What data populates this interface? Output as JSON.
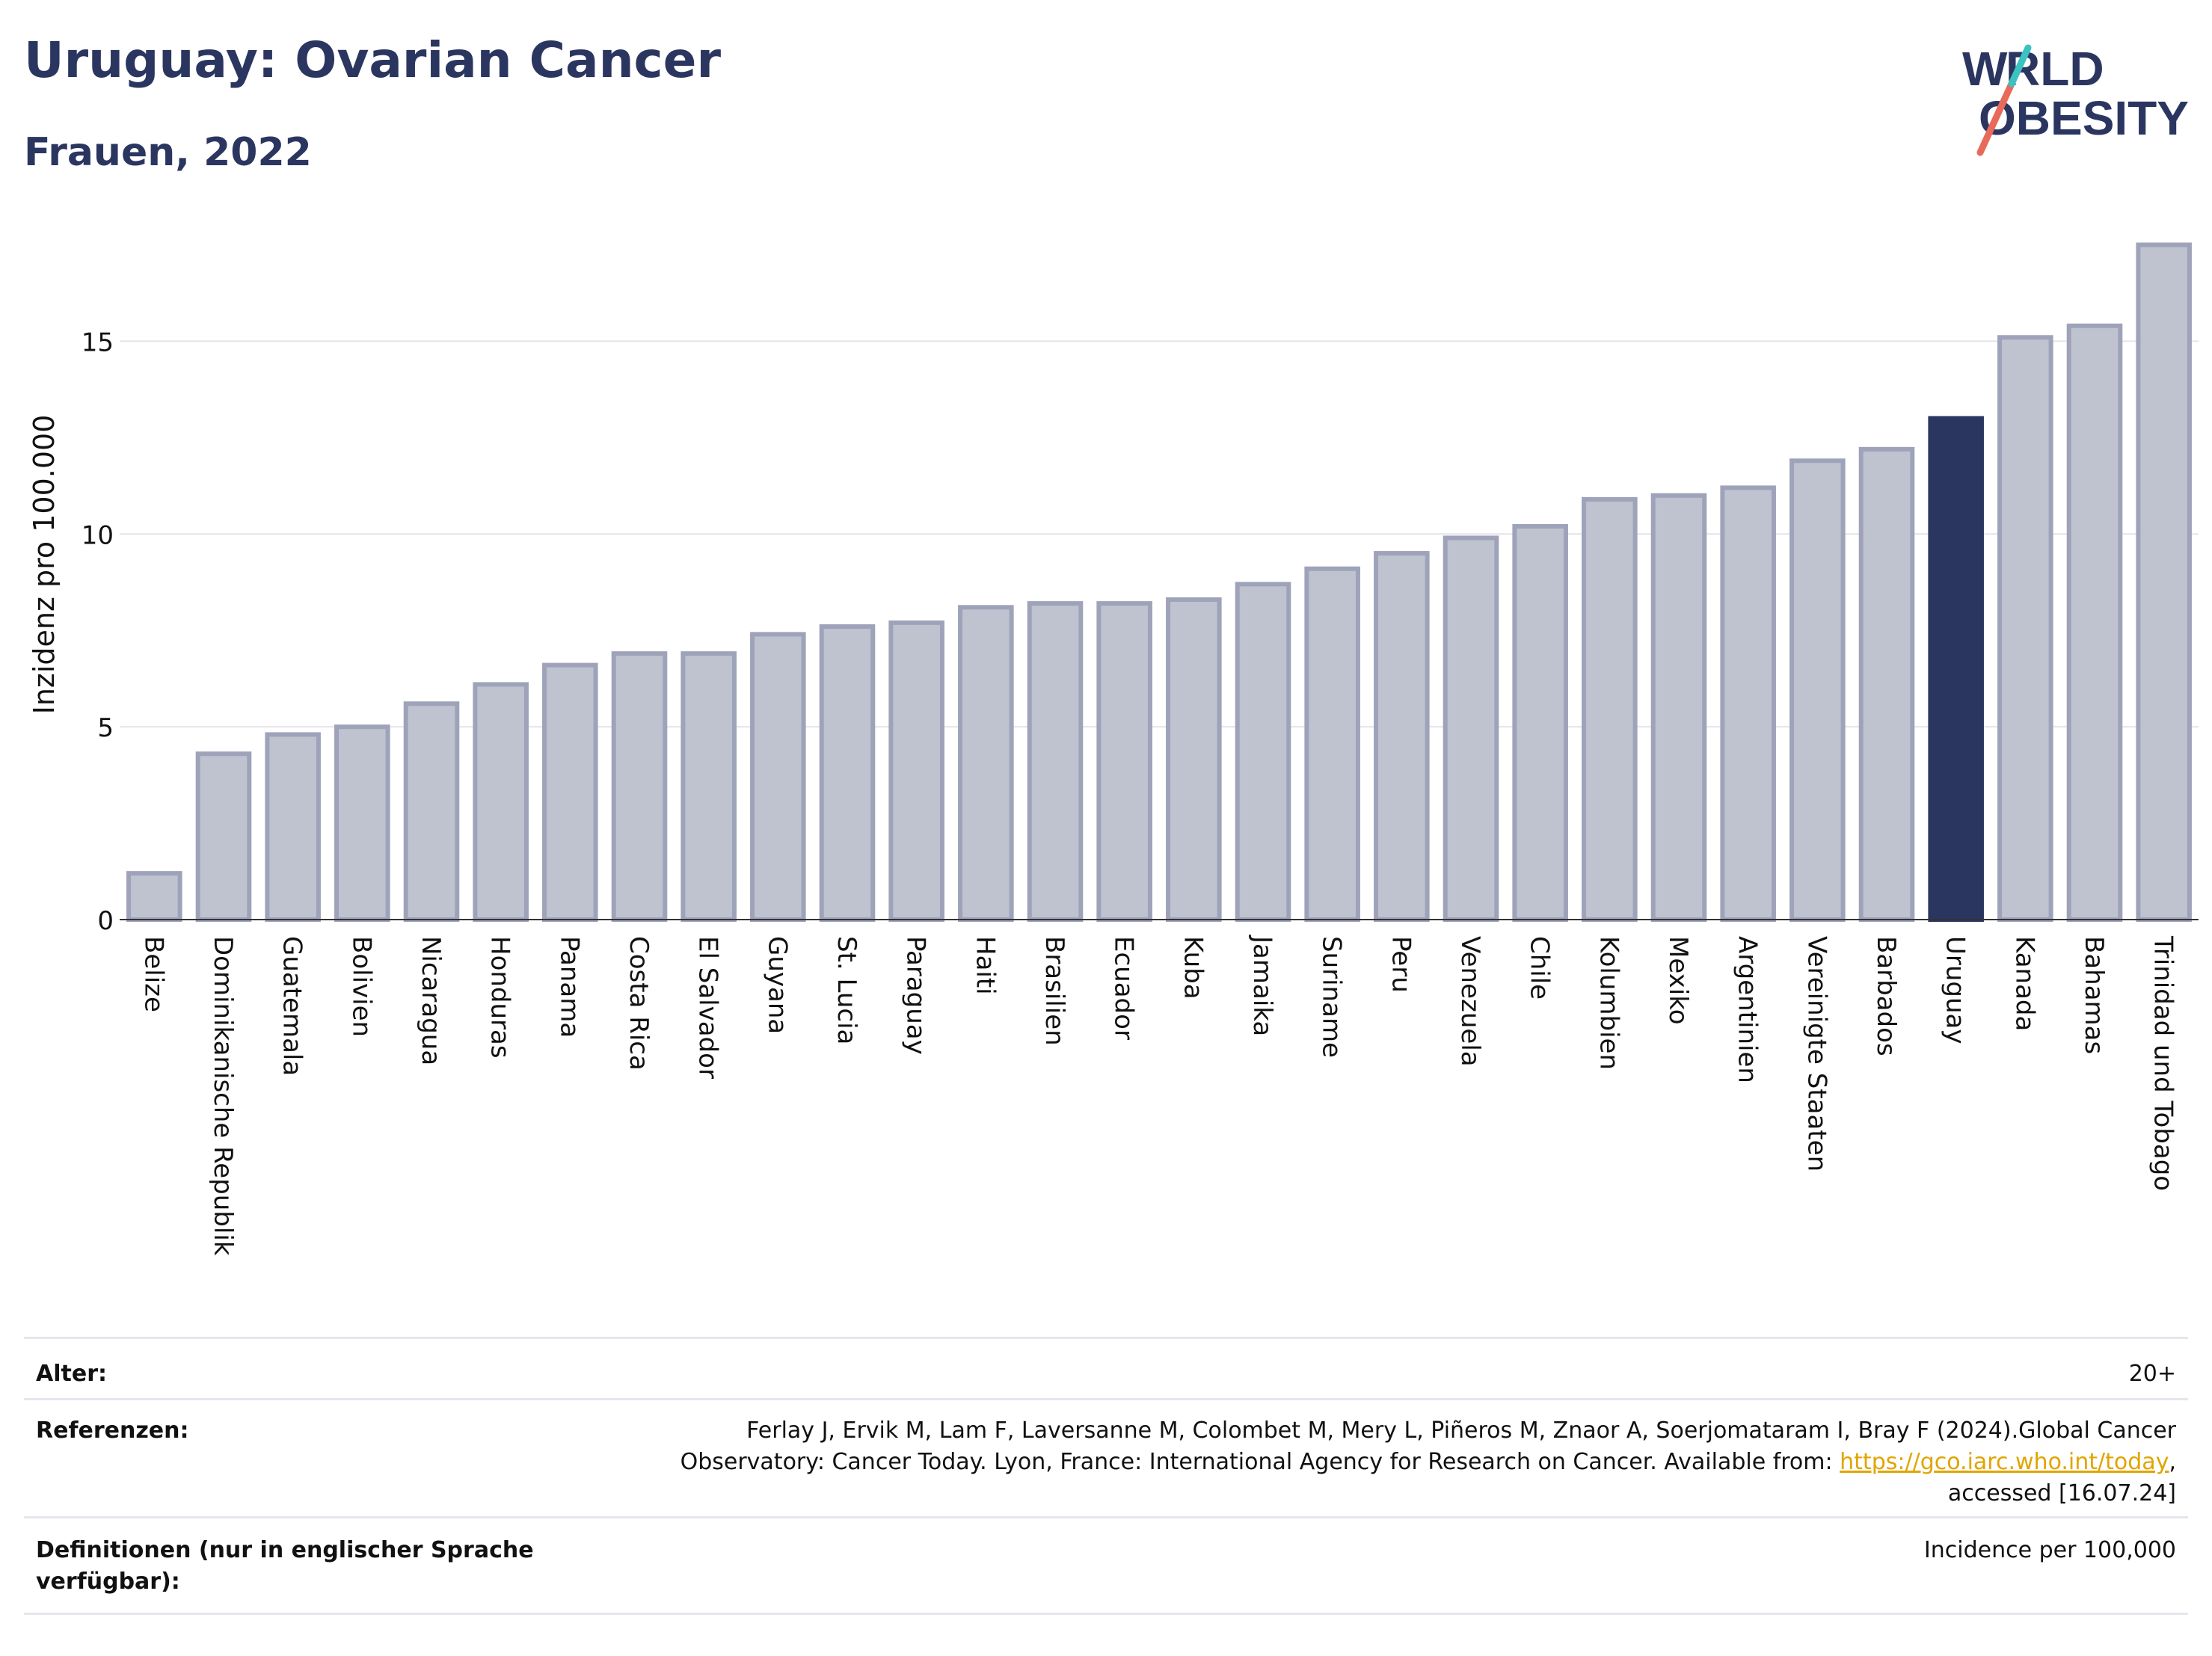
{
  "header": {
    "title": "Uruguay: Ovarian Cancer",
    "subtitle": "Frauen, 2022",
    "logo_text": "WORLD OBESITY"
  },
  "colors": {
    "highlight": "#2b3660",
    "bar_fill": "#bfc2cf",
    "bar_stroke": "#9ea3ba",
    "title": "#2b3660",
    "link": "#e0a500"
  },
  "chart_data": {
    "type": "bar",
    "ylabel": "Inzidenz pro 100.000",
    "ylim": [
      0,
      17.8
    ],
    "yticks": [
      0,
      5,
      10,
      15
    ],
    "grid": true,
    "highlight": "Uruguay",
    "categories": [
      "Belize",
      "Dominikanische Republik",
      "Guatemala",
      "Bolivien",
      "Nicaragua",
      "Honduras",
      "Panama",
      "Costa Rica",
      "El Salvador",
      "Guyana",
      "St. Lucia",
      "Paraguay",
      "Haiti",
      "Brasilien",
      "Ecuador",
      "Kuba",
      "Jamaika",
      "Suriname",
      "Peru",
      "Venezuela",
      "Chile",
      "Kolumbien",
      "Mexiko",
      "Argentinien",
      "Vereinigte Staaten",
      "Barbados",
      "Uruguay",
      "Kanada",
      "Bahamas",
      "Trinidad und Tobago"
    ],
    "values": [
      1.2,
      4.3,
      4.8,
      5.0,
      5.6,
      6.1,
      6.6,
      6.9,
      6.9,
      7.4,
      7.6,
      7.7,
      8.1,
      8.2,
      8.2,
      8.3,
      8.7,
      9.1,
      9.5,
      9.9,
      10.2,
      10.9,
      11.0,
      11.2,
      11.9,
      12.2,
      13.0,
      15.1,
      15.4,
      17.5
    ]
  },
  "footer": {
    "age_label": "Alter:",
    "age_value": "20+",
    "ref_label": "Referenzen:",
    "ref_line1": "Ferlay J, Ervik M, Lam F, Laversanne M, Colombet M, Mery L, Piñeros M, Znaor A, Soerjomataram I, Bray F (2024).Global Cancer",
    "ref_line2_pre": "Observatory: Cancer Today. Lyon, France: International Agency for Research on Cancer. Available from: ",
    "ref_link": "https://gco.iarc.who.int/today",
    "ref_line2_post": ",",
    "ref_line3": "accessed [16.07.24]",
    "def_label": "Definitionen (nur in englischer Sprache verfügbar):",
    "def_value": "Incidence per 100,000"
  }
}
